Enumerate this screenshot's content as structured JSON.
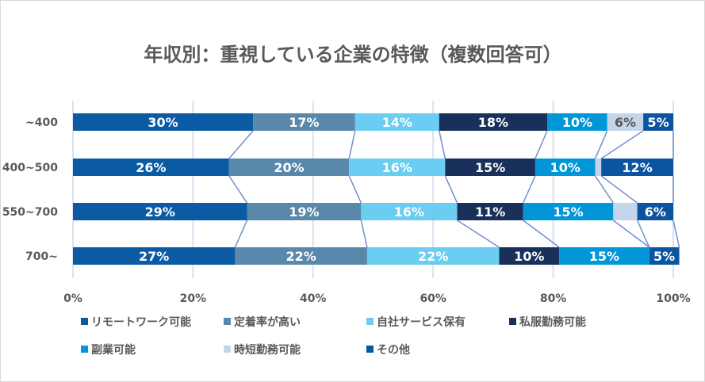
{
  "chart_data": {
    "type": "bar",
    "stacked": "100%",
    "orientation": "horizontal",
    "title": "年収別：重視している企業の特徴（複数回答可）",
    "categories": [
      "~400",
      "400~500",
      "550~700",
      "700~"
    ],
    "series": [
      {
        "name": "リモートワーク可能",
        "color": "#0b5aa4",
        "values": [
          30,
          26,
          29,
          27
        ]
      },
      {
        "name": "定着率が高い",
        "color": "#5a88ab",
        "values": [
          17,
          20,
          19,
          22
        ]
      },
      {
        "name": "自社サービス保有",
        "color": "#6bcdf2",
        "values": [
          14,
          16,
          16,
          22
        ]
      },
      {
        "name": "私服勤務可能",
        "color": "#18305a",
        "values": [
          18,
          15,
          11,
          10
        ]
      },
      {
        "name": "副業可能",
        "color": "#0096d8",
        "values": [
          10,
          10,
          15,
          15
        ]
      },
      {
        "name": "時短勤務可能",
        "color": "#c4d4ea",
        "values": [
          6,
          1,
          4,
          0
        ]
      },
      {
        "name": "その他",
        "color": "#0b55a0",
        "values": [
          5,
          12,
          6,
          5
        ]
      }
    ],
    "xlim": [
      0,
      100
    ],
    "xticks": [
      "0%",
      "20%",
      "40%",
      "60%",
      "80%",
      "100%"
    ],
    "grid": true,
    "series_lines": true,
    "legend": "bottom"
  }
}
